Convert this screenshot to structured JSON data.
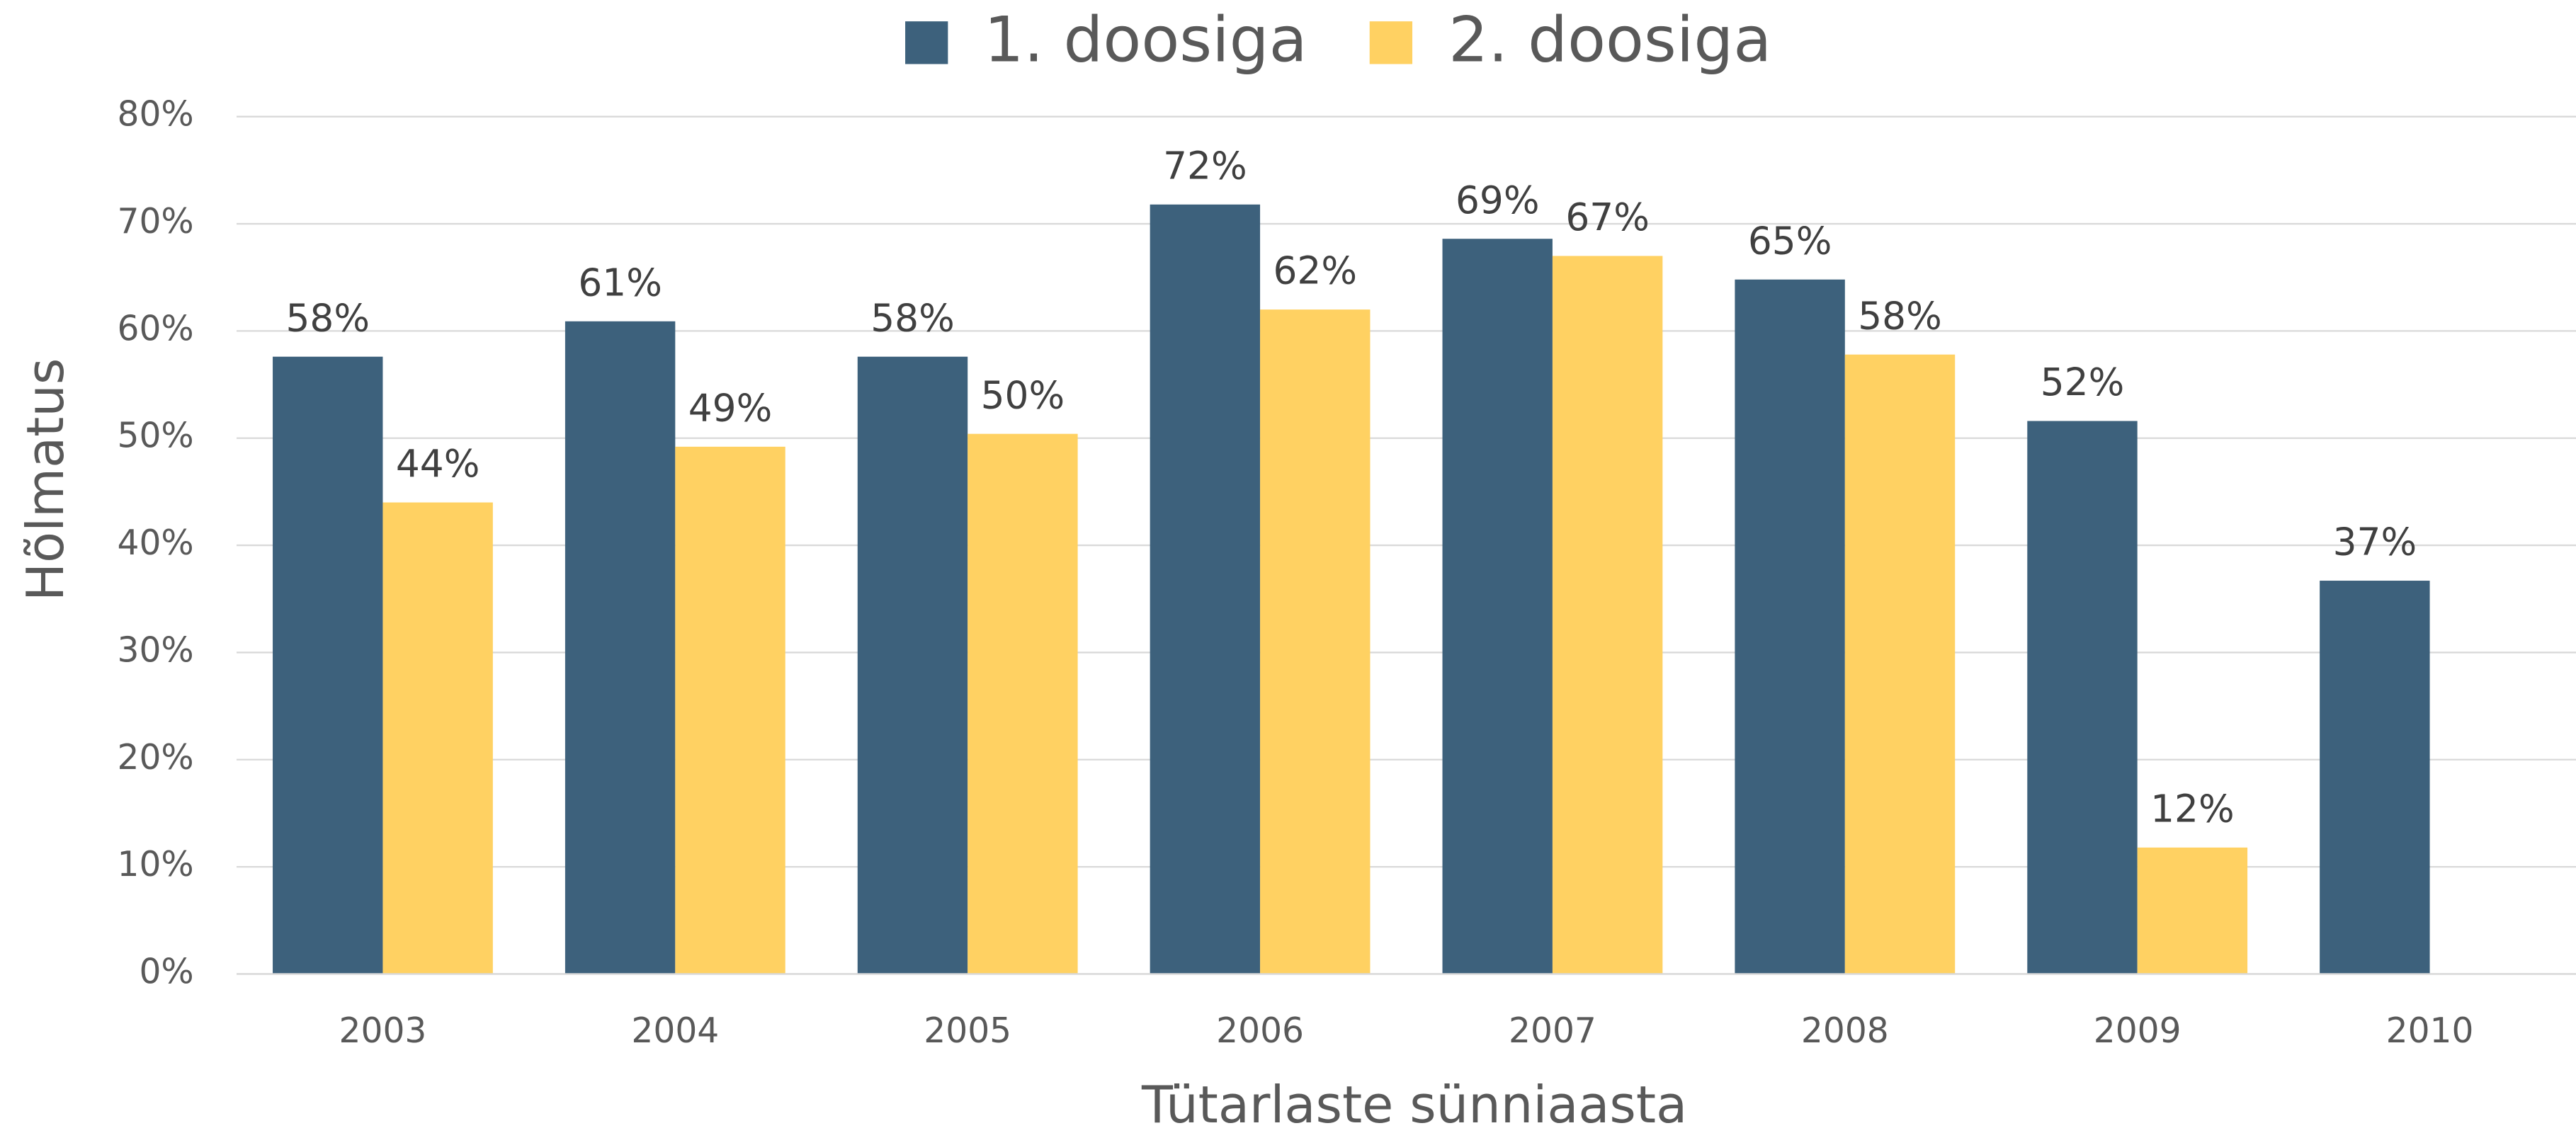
{
  "chart_data": {
    "type": "bar",
    "categories": [
      "2003",
      "2004",
      "2005",
      "2006",
      "2007",
      "2008",
      "2009",
      "2010"
    ],
    "series": [
      {
        "name": "1. doosiga",
        "color": "#3d617c",
        "values": [
          57.6,
          60.9,
          57.6,
          71.8,
          68.6,
          64.8,
          51.6,
          36.7
        ],
        "value_labels": [
          "58%",
          "61%",
          "58%",
          "72%",
          "69%",
          "65%",
          "52%",
          "37%"
        ]
      },
      {
        "name": "2. doosiga",
        "color": "#ffd162",
        "values": [
          44,
          49.2,
          50.4,
          62,
          67,
          57.8,
          11.8,
          null
        ],
        "value_labels": [
          "44%",
          "49%",
          "50%",
          "62%",
          "67%",
          "58%",
          "12%",
          null
        ]
      }
    ],
    "x_label": "Tütarlaste sünniaasta",
    "y_label": "Hõlmatus",
    "ylim": [
      0,
      80
    ],
    "yticks": [
      {
        "value": 0,
        "label": "0%"
      },
      {
        "value": 10,
        "label": "10%"
      },
      {
        "value": 20,
        "label": "20%"
      },
      {
        "value": 30,
        "label": "30%"
      },
      {
        "value": 40,
        "label": "40%"
      },
      {
        "value": 50,
        "label": "50%"
      },
      {
        "value": 60,
        "label": "60%"
      },
      {
        "value": 70,
        "label": "70%"
      },
      {
        "value": 80,
        "label": "80%"
      }
    ],
    "grid": true,
    "legend": "top"
  }
}
